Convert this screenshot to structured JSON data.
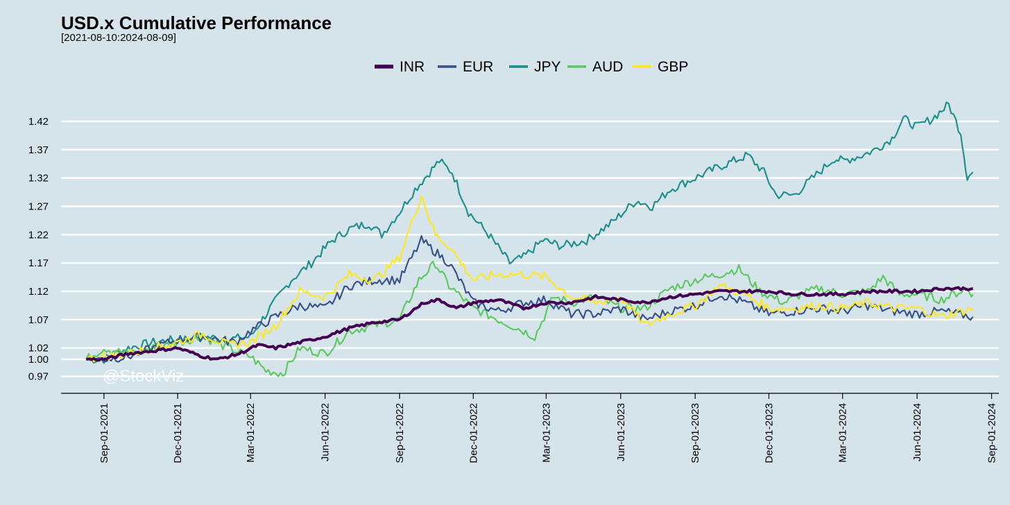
{
  "chart_data": {
    "type": "line",
    "title": "USD.x Cumulative Performance",
    "subtitle": "[2021-08-10:2024-08-09]",
    "xlabel": "",
    "ylabel": "",
    "watermark": "@StockViz",
    "legend_position": "top",
    "grid": "horizontal",
    "xlim": [
      "2021-07-10",
      "2024-09-10"
    ],
    "ylim": [
      0.94,
      1.475
    ],
    "y_ticks": [
      0.97,
      1.0,
      1.02,
      1.07,
      1.12,
      1.17,
      1.22,
      1.27,
      1.32,
      1.37,
      1.42
    ],
    "y_tick_labels": [
      "0.97",
      "1.00",
      "1.02",
      "1.07",
      "1.12",
      "1.17",
      "1.22",
      "1.27",
      "1.32",
      "1.37",
      "1.42"
    ],
    "x_ticks": [
      "2021-09-01",
      "2021-12-01",
      "2022-03-01",
      "2022-06-01",
      "2022-09-01",
      "2022-12-01",
      "2023-03-01",
      "2023-06-01",
      "2023-09-01",
      "2023-12-01",
      "2024-03-01",
      "2024-06-01",
      "2024-09-01"
    ],
    "x_tick_labels": [
      "Sep-01-2021",
      "Dec-01-2021",
      "Mar-01-2022",
      "Jun-01-2022",
      "Sep-01-2022",
      "Dec-01-2022",
      "Mar-01-2023",
      "Jun-01-2023",
      "Sep-01-2023",
      "Dec-01-2023",
      "Mar-01-2024",
      "Jun-01-2024",
      "Sep-01-2024"
    ],
    "series": [
      {
        "name": "INR",
        "color": "#440154",
        "width": 4,
        "points": [
          [
            "2021-08-10",
            1.0
          ],
          [
            "2021-09-01",
            1.0
          ],
          [
            "2021-10-01",
            1.01
          ],
          [
            "2021-11-01",
            1.015
          ],
          [
            "2021-12-01",
            1.02
          ],
          [
            "2022-01-01",
            1.005
          ],
          [
            "2022-01-20",
            1.0
          ],
          [
            "2022-02-15",
            1.01
          ],
          [
            "2022-03-10",
            1.025
          ],
          [
            "2022-04-01",
            1.02
          ],
          [
            "2022-05-01",
            1.03
          ],
          [
            "2022-06-01",
            1.04
          ],
          [
            "2022-07-01",
            1.055
          ],
          [
            "2022-08-01",
            1.065
          ],
          [
            "2022-09-01",
            1.07
          ],
          [
            "2022-10-01",
            1.1
          ],
          [
            "2022-10-20",
            1.105
          ],
          [
            "2022-11-10",
            1.09
          ],
          [
            "2022-12-01",
            1.1
          ],
          [
            "2023-01-01",
            1.105
          ],
          [
            "2023-02-01",
            1.09
          ],
          [
            "2023-03-01",
            1.1
          ],
          [
            "2023-04-01",
            1.1
          ],
          [
            "2023-05-01",
            1.11
          ],
          [
            "2023-06-01",
            1.105
          ],
          [
            "2023-07-01",
            1.1
          ],
          [
            "2023-08-01",
            1.11
          ],
          [
            "2023-09-01",
            1.115
          ],
          [
            "2023-10-01",
            1.12
          ],
          [
            "2023-11-01",
            1.12
          ],
          [
            "2023-12-01",
            1.12
          ],
          [
            "2024-01-01",
            1.115
          ],
          [
            "2024-02-01",
            1.115
          ],
          [
            "2024-03-01",
            1.115
          ],
          [
            "2024-04-01",
            1.12
          ],
          [
            "2024-05-01",
            1.12
          ],
          [
            "2024-06-01",
            1.12
          ],
          [
            "2024-07-01",
            1.125
          ],
          [
            "2024-08-09",
            1.125
          ]
        ]
      },
      {
        "name": "EUR",
        "color": "#3b528b",
        "width": 2.2,
        "points": [
          [
            "2021-08-10",
            1.0
          ],
          [
            "2021-09-01",
            1.0
          ],
          [
            "2021-10-01",
            1.005
          ],
          [
            "2021-11-01",
            1.02
          ],
          [
            "2021-12-01",
            1.035
          ],
          [
            "2022-01-01",
            1.04
          ],
          [
            "2022-02-10",
            1.03
          ],
          [
            "2022-03-01",
            1.05
          ],
          [
            "2022-04-01",
            1.075
          ],
          [
            "2022-05-01",
            1.095
          ],
          [
            "2022-06-01",
            1.09
          ],
          [
            "2022-07-01",
            1.13
          ],
          [
            "2022-08-01",
            1.14
          ],
          [
            "2022-09-01",
            1.14
          ],
          [
            "2022-09-28",
            1.21
          ],
          [
            "2022-10-15",
            1.19
          ],
          [
            "2022-11-01",
            1.17
          ],
          [
            "2022-12-01",
            1.1
          ],
          [
            "2023-01-01",
            1.085
          ],
          [
            "2023-02-01",
            1.1
          ],
          [
            "2023-03-01",
            1.105
          ],
          [
            "2023-04-01",
            1.08
          ],
          [
            "2023-05-01",
            1.08
          ],
          [
            "2023-06-01",
            1.09
          ],
          [
            "2023-07-01",
            1.07
          ],
          [
            "2023-08-01",
            1.085
          ],
          [
            "2023-09-01",
            1.095
          ],
          [
            "2023-10-01",
            1.115
          ],
          [
            "2023-11-01",
            1.1
          ],
          [
            "2023-12-01",
            1.08
          ],
          [
            "2024-01-01",
            1.085
          ],
          [
            "2024-02-01",
            1.09
          ],
          [
            "2024-03-01",
            1.085
          ],
          [
            "2024-04-01",
            1.095
          ],
          [
            "2024-05-01",
            1.085
          ],
          [
            "2024-06-01",
            1.08
          ],
          [
            "2024-07-01",
            1.085
          ],
          [
            "2024-08-09",
            1.075
          ]
        ]
      },
      {
        "name": "JPY",
        "color": "#21908c",
        "width": 2.2,
        "points": [
          [
            "2021-08-10",
            1.0
          ],
          [
            "2021-09-01",
            1.0
          ],
          [
            "2021-10-01",
            1.02
          ],
          [
            "2021-11-01",
            1.03
          ],
          [
            "2021-12-01",
            1.035
          ],
          [
            "2022-01-01",
            1.04
          ],
          [
            "2022-02-01",
            1.035
          ],
          [
            "2022-03-01",
            1.04
          ],
          [
            "2022-03-25",
            1.09
          ],
          [
            "2022-04-20",
            1.14
          ],
          [
            "2022-05-15",
            1.17
          ],
          [
            "2022-06-10",
            1.21
          ],
          [
            "2022-07-01",
            1.23
          ],
          [
            "2022-07-25",
            1.24
          ],
          [
            "2022-08-10",
            1.22
          ],
          [
            "2022-09-01",
            1.26
          ],
          [
            "2022-09-20",
            1.3
          ],
          [
            "2022-10-20",
            1.35
          ],
          [
            "2022-11-05",
            1.33
          ],
          [
            "2022-11-25",
            1.26
          ],
          [
            "2022-12-20",
            1.22
          ],
          [
            "2023-01-15",
            1.17
          ],
          [
            "2023-02-01",
            1.18
          ],
          [
            "2023-02-25",
            1.21
          ],
          [
            "2023-03-20",
            1.2
          ],
          [
            "2023-04-20",
            1.21
          ],
          [
            "2023-05-20",
            1.24
          ],
          [
            "2023-06-20",
            1.28
          ],
          [
            "2023-07-10",
            1.27
          ],
          [
            "2023-08-01",
            1.3
          ],
          [
            "2023-09-01",
            1.32
          ],
          [
            "2023-10-01",
            1.34
          ],
          [
            "2023-11-05",
            1.36
          ],
          [
            "2023-11-25",
            1.33
          ],
          [
            "2023-12-10",
            1.29
          ],
          [
            "2024-01-01",
            1.29
          ],
          [
            "2024-02-01",
            1.33
          ],
          [
            "2024-02-20",
            1.355
          ],
          [
            "2024-03-01",
            1.35
          ],
          [
            "2024-03-25",
            1.36
          ],
          [
            "2024-04-10",
            1.37
          ],
          [
            "2024-05-01",
            1.39
          ],
          [
            "2024-05-15",
            1.425
          ],
          [
            "2024-06-01",
            1.41
          ],
          [
            "2024-06-20",
            1.425
          ],
          [
            "2024-07-10",
            1.45
          ],
          [
            "2024-07-25",
            1.4
          ],
          [
            "2024-08-02",
            1.32
          ],
          [
            "2024-08-09",
            1.33
          ]
        ]
      },
      {
        "name": "AUD",
        "color": "#5ec962",
        "width": 2.2,
        "points": [
          [
            "2021-08-10",
            1.0
          ],
          [
            "2021-09-01",
            1.02
          ],
          [
            "2021-10-01",
            1.01
          ],
          [
            "2021-11-01",
            1.02
          ],
          [
            "2021-12-01",
            1.03
          ],
          [
            "2022-01-01",
            1.04
          ],
          [
            "2022-02-01",
            1.02
          ],
          [
            "2022-03-01",
            1.005
          ],
          [
            "2022-03-20",
            0.98
          ],
          [
            "2022-04-10",
            0.975
          ],
          [
            "2022-05-01",
            1.02
          ],
          [
            "2022-06-01",
            1.01
          ],
          [
            "2022-07-01",
            1.05
          ],
          [
            "2022-08-01",
            1.06
          ],
          [
            "2022-09-01",
            1.07
          ],
          [
            "2022-09-25",
            1.14
          ],
          [
            "2022-10-15",
            1.17
          ],
          [
            "2022-11-01",
            1.13
          ],
          [
            "2022-12-01",
            1.09
          ],
          [
            "2023-01-01",
            1.07
          ],
          [
            "2023-02-01",
            1.05
          ],
          [
            "2023-02-15",
            1.04
          ],
          [
            "2023-03-10",
            1.11
          ],
          [
            "2023-04-01",
            1.1
          ],
          [
            "2023-05-01",
            1.11
          ],
          [
            "2023-06-01",
            1.09
          ],
          [
            "2023-07-01",
            1.09
          ],
          [
            "2023-08-01",
            1.125
          ],
          [
            "2023-09-01",
            1.14
          ],
          [
            "2023-10-01",
            1.15
          ],
          [
            "2023-10-25",
            1.16
          ],
          [
            "2023-11-20",
            1.12
          ],
          [
            "2023-12-20",
            1.1
          ],
          [
            "2024-01-10",
            1.115
          ],
          [
            "2024-02-01",
            1.125
          ],
          [
            "2024-03-01",
            1.115
          ],
          [
            "2024-04-01",
            1.12
          ],
          [
            "2024-04-20",
            1.145
          ],
          [
            "2024-05-10",
            1.115
          ],
          [
            "2024-06-01",
            1.115
          ],
          [
            "2024-07-01",
            1.105
          ],
          [
            "2024-08-01",
            1.125
          ],
          [
            "2024-08-09",
            1.115
          ]
        ]
      },
      {
        "name": "GBP",
        "color": "#fde725",
        "width": 2.2,
        "points": [
          [
            "2021-08-10",
            1.0
          ],
          [
            "2021-09-01",
            1.005
          ],
          [
            "2021-10-01",
            1.01
          ],
          [
            "2021-11-01",
            1.02
          ],
          [
            "2021-12-01",
            1.03
          ],
          [
            "2022-01-01",
            1.045
          ],
          [
            "2022-02-01",
            1.025
          ],
          [
            "2022-03-01",
            1.03
          ],
          [
            "2022-04-01",
            1.06
          ],
          [
            "2022-05-01",
            1.12
          ],
          [
            "2022-06-01",
            1.11
          ],
          [
            "2022-07-01",
            1.15
          ],
          [
            "2022-08-01",
            1.14
          ],
          [
            "2022-09-01",
            1.18
          ],
          [
            "2022-09-28",
            1.29
          ],
          [
            "2022-10-15",
            1.22
          ],
          [
            "2022-11-01",
            1.2
          ],
          [
            "2022-12-01",
            1.14
          ],
          [
            "2023-01-01",
            1.15
          ],
          [
            "2023-02-01",
            1.15
          ],
          [
            "2023-03-01",
            1.145
          ],
          [
            "2023-04-01",
            1.11
          ],
          [
            "2023-05-01",
            1.1
          ],
          [
            "2023-06-01",
            1.11
          ],
          [
            "2023-07-01",
            1.06
          ],
          [
            "2023-08-01",
            1.08
          ],
          [
            "2023-09-01",
            1.095
          ],
          [
            "2023-10-01",
            1.13
          ],
          [
            "2023-11-01",
            1.115
          ],
          [
            "2023-12-01",
            1.09
          ],
          [
            "2024-01-01",
            1.09
          ],
          [
            "2024-02-01",
            1.095
          ],
          [
            "2024-03-01",
            1.09
          ],
          [
            "2024-04-01",
            1.1
          ],
          [
            "2024-05-01",
            1.09
          ],
          [
            "2024-06-01",
            1.09
          ],
          [
            "2024-07-01",
            1.075
          ],
          [
            "2024-08-09",
            1.09
          ]
        ]
      }
    ]
  }
}
